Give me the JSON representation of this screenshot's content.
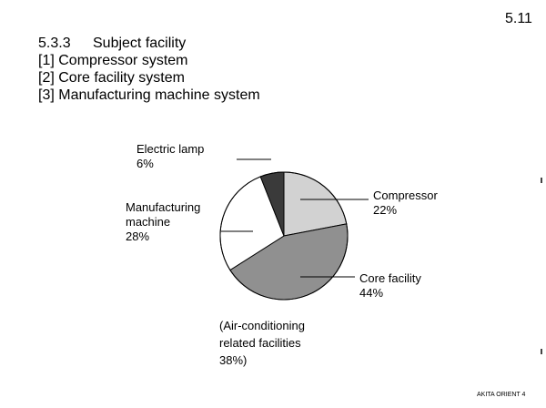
{
  "page_number": "5.11",
  "heading": {
    "section_number": "5.3.3",
    "section_title": "Subject facility",
    "items": [
      "[1] Compressor system",
      "[2] Core facility system",
      "[3] Manufacturing machine system"
    ]
  },
  "footer": "AKITA ORIENT 4",
  "chart_data": {
    "type": "pie",
    "start_angle_deg": 0,
    "direction": "clockwise",
    "slices": [
      {
        "label": [
          "Compressor",
          "22%"
        ],
        "value": 22,
        "color": "#d2d2d2"
      },
      {
        "label": [
          "Core facility",
          "44%"
        ],
        "value": 44,
        "color": "#909090"
      },
      {
        "label": [
          "Manufacturing",
          "machine",
          "28%"
        ],
        "value": 28,
        "color": "#ffffff"
      },
      {
        "label": [
          "Electric lamp",
          "6%"
        ],
        "value": 6,
        "color": "#3a3a3a"
      }
    ],
    "annotation": [
      "(Air-conditioning",
      "related facilities",
      "38%)"
    ]
  }
}
